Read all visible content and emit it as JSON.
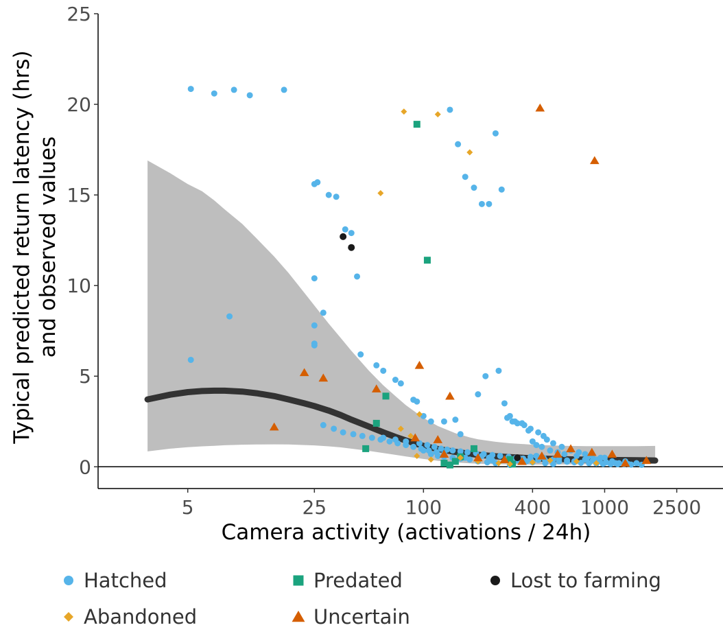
{
  "chart_data": {
    "type": "scatter",
    "title": "",
    "xlabel": "Camera activity (activations / 24h)",
    "ylabel_lines": [
      "Typical predicted return latency (hrs)",
      "and observed values"
    ],
    "x_scale": "log",
    "xlim": [
      1.6,
      4500
    ],
    "ylim": [
      -1.2,
      25
    ],
    "x_ticks": [
      5,
      25,
      100,
      400,
      1000,
      2500
    ],
    "x_tick_labels": [
      "5",
      "25",
      "100",
      "400",
      "1000",
      "2500"
    ],
    "y_ticks": [
      0,
      5,
      10,
      15,
      20,
      25
    ],
    "y_tick_labels": [
      "0",
      "5",
      "10",
      "15",
      "20",
      "25"
    ],
    "grid": false,
    "legend_position": "bottom",
    "colors": {
      "Hatched": "#56b4e9",
      "Predated": "#1ba37e",
      "Lost to farming": "#1a1a1a",
      "Abandoned": "#e7a628",
      "Uncertain": "#d55e00",
      "fit_line": "#333333",
      "ribbon": "#bebebe"
    },
    "fit": {
      "x": [
        3,
        4,
        5,
        6,
        7,
        8,
        10,
        12,
        15,
        18,
        22,
        25,
        30,
        35,
        40,
        50,
        60,
        70,
        80,
        100,
        120,
        150,
        180,
        200,
        250,
        300,
        400,
        500,
        600,
        800,
        1000,
        1500,
        1900
      ],
      "y": [
        3.72,
        3.98,
        4.12,
        4.18,
        4.2,
        4.2,
        4.15,
        4.06,
        3.9,
        3.72,
        3.5,
        3.35,
        3.1,
        2.85,
        2.6,
        2.22,
        1.9,
        1.65,
        1.45,
        1.15,
        0.98,
        0.82,
        0.72,
        0.66,
        0.58,
        0.53,
        0.47,
        0.44,
        0.42,
        0.39,
        0.38,
        0.36,
        0.35
      ],
      "lower": [
        0.85,
        1.0,
        1.08,
        1.13,
        1.16,
        1.19,
        1.22,
        1.23,
        1.24,
        1.23,
        1.2,
        1.18,
        1.13,
        1.07,
        1.0,
        0.88,
        0.76,
        0.66,
        0.57,
        0.43,
        0.33,
        0.24,
        0.19,
        0.17,
        0.14,
        0.13,
        0.12,
        0.12,
        0.13,
        0.14,
        0.15,
        0.16,
        0.17
      ],
      "upper": [
        16.9,
        16.2,
        15.6,
        15.2,
        14.7,
        14.2,
        13.4,
        12.6,
        11.6,
        10.7,
        9.6,
        8.9,
        7.9,
        7.1,
        6.4,
        5.3,
        4.5,
        3.9,
        3.4,
        2.7,
        2.25,
        1.85,
        1.62,
        1.52,
        1.38,
        1.3,
        1.22,
        1.18,
        1.16,
        1.14,
        1.14,
        1.14,
        1.15
      ]
    },
    "series": [
      {
        "name": "Hatched",
        "marker": "circle",
        "x": [
          5.2,
          7,
          9,
          11,
          17,
          25,
          26,
          30,
          33,
          37,
          40,
          43,
          25,
          28,
          8.5,
          25,
          25,
          25,
          5.2,
          45,
          55,
          60,
          70,
          75,
          88,
          92,
          100,
          110,
          130,
          150,
          160,
          200,
          220,
          260,
          280,
          300,
          320,
          350,
          380,
          400,
          420,
          450,
          500,
          550,
          600,
          700,
          800,
          900,
          1000,
          1100,
          1200,
          1300,
          1500,
          140,
          155,
          170,
          190,
          210,
          230,
          250,
          270,
          290,
          310,
          330,
          360,
          390,
          430,
          460,
          480,
          520,
          580,
          650,
          720,
          780,
          850,
          950,
          60,
          70,
          80,
          95,
          105,
          115,
          125,
          135,
          145,
          160,
          175,
          195,
          215,
          240,
          265,
          295,
          325,
          355,
          390,
          430,
          470,
          510,
          560,
          620,
          680,
          740,
          820,
          900,
          980,
          1080,
          1180,
          1280,
          1400,
          1600,
          28,
          32,
          36,
          41,
          46,
          52,
          58,
          65,
          72,
          80,
          88,
          97,
          107,
          118,
          130,
          170,
          310,
          330,
          370,
          400,
          470,
          520,
          300,
          240,
          230,
          210,
          340,
          390,
          420,
          460,
          520,
          560,
          620,
          680,
          780,
          860,
          940,
          1020,
          1150,
          1350,
          100,
          110,
          120,
          130,
          145,
          160,
          180,
          200,
          225,
          250
        ],
        "y": [
          20.85,
          20.6,
          20.8,
          20.5,
          20.8,
          15.6,
          15.7,
          15.0,
          14.9,
          13.1,
          12.9,
          10.5,
          10.4,
          8.5,
          8.3,
          7.8,
          6.8,
          6.7,
          5.9,
          6.2,
          5.6,
          5.3,
          4.8,
          4.6,
          3.7,
          3.6,
          2.8,
          2.5,
          2.5,
          2.6,
          1.8,
          4.0,
          5.0,
          5.3,
          3.5,
          2.8,
          2.5,
          2.4,
          2.0,
          1.4,
          1.2,
          1.1,
          0.9,
          0.8,
          0.7,
          0.6,
          0.5,
          0.4,
          0.5,
          0.3,
          0.2,
          0.3,
          0.2,
          19.7,
          17.8,
          16.0,
          15.4,
          14.5,
          14.5,
          18.4,
          15.3,
          2.7,
          2.5,
          2.4,
          2.3,
          2.1,
          1.9,
          1.7,
          1.5,
          1.3,
          1.1,
          0.9,
          0.8,
          0.7,
          0.6,
          0.5,
          1.6,
          1.5,
          1.4,
          1.3,
          1.2,
          1.1,
          1.0,
          0.95,
          0.9,
          0.85,
          0.8,
          0.75,
          0.7,
          0.65,
          0.6,
          0.55,
          0.5,
          0.45,
          0.4,
          0.38,
          0.35,
          0.33,
          0.3,
          0.28,
          0.25,
          0.22,
          0.2,
          0.18,
          0.16,
          0.15,
          0.14,
          0.13,
          0.12,
          0.11,
          2.3,
          2.1,
          1.9,
          1.8,
          1.7,
          1.6,
          1.5,
          1.4,
          1.3,
          1.2,
          1.1,
          1.0,
          0.9,
          0.8,
          0.7,
          0.5,
          0.4,
          0.35,
          0.3,
          0.25,
          0.2,
          0.15,
          0.1,
          0.35,
          0.5,
          0.6,
          0.45,
          0.55,
          0.6,
          0.5,
          0.4,
          0.45,
          0.35,
          0.3,
          0.4,
          0.35,
          0.3,
          0.25,
          0.2,
          0.15,
          0.9,
          0.7,
          0.6,
          0.55,
          0.5,
          0.45,
          0.4,
          0.3,
          0.25,
          0.2
        ]
      },
      {
        "name": "Predated",
        "marker": "square",
        "x": [
          92,
          105,
          62,
          55,
          48,
          190,
          160,
          130,
          140,
          150,
          300,
          310
        ],
        "y": [
          18.9,
          11.4,
          3.9,
          2.4,
          1.0,
          1.0,
          0.55,
          0.2,
          0.1,
          0.3,
          0.4,
          0.15
        ],
        "marker_size": [
          11,
          11,
          11,
          11,
          11,
          11,
          11,
          11,
          11,
          11,
          11,
          11
        ]
      },
      {
        "name": "Lost to farming",
        "marker": "circle",
        "x": [
          36,
          40,
          330
        ],
        "y": [
          12.7,
          12.1,
          0.5
        ]
      },
      {
        "name": "Abandoned",
        "marker": "diamond",
        "x": [
          78,
          120,
          180,
          58,
          95,
          75,
          85,
          92,
          110,
          160,
          200,
          260,
          300,
          400,
          500,
          700,
          900
        ],
        "y": [
          19.6,
          19.45,
          17.35,
          15.1,
          2.9,
          2.1,
          1.7,
          0.6,
          0.4,
          0.5,
          0.3,
          0.2,
          0.15,
          0.25,
          0.35,
          0.3,
          0.2
        ],
        "marker_size": [
          9,
          9,
          9,
          9,
          9,
          9,
          9,
          9,
          9,
          9,
          9,
          9,
          9,
          9,
          9,
          9,
          9
        ]
      },
      {
        "name": "Uncertain",
        "marker": "triangle",
        "x": [
          440,
          880,
          95,
          140,
          22,
          28,
          55,
          90,
          120,
          130,
          200,
          280,
          350,
          450,
          550,
          650,
          850,
          1100,
          1300,
          1700,
          15
        ],
        "y": [
          19.8,
          16.9,
          5.6,
          3.9,
          5.2,
          4.9,
          4.3,
          1.6,
          1.5,
          0.7,
          0.5,
          0.4,
          0.3,
          0.6,
          0.7,
          1.0,
          0.8,
          0.7,
          0.2,
          0.35,
          2.2
        ]
      }
    ],
    "legend": [
      {
        "label": "Hatched",
        "marker": "circle"
      },
      {
        "label": "Predated",
        "marker": "square"
      },
      {
        "label": "Lost to farming",
        "marker": "circle"
      },
      {
        "label": "Abandoned",
        "marker": "diamond"
      },
      {
        "label": "Uncertain",
        "marker": "triangle"
      }
    ]
  }
}
